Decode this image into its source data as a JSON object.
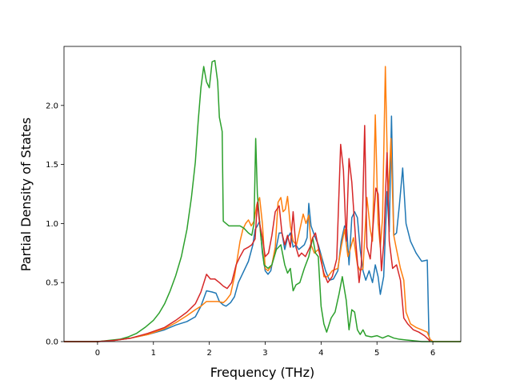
{
  "chart_data": {
    "type": "line",
    "title": "",
    "xlabel": "Frequency (THz)",
    "ylabel": "Partial Density of States",
    "xlim": [
      -0.6,
      6.5
    ],
    "ylim": [
      0.0,
      2.5
    ],
    "xticks": [
      0,
      1,
      2,
      3,
      4,
      5,
      6
    ],
    "yticks": [
      0.0,
      0.5,
      1.0,
      1.5,
      2.0
    ],
    "xtick_labels": [
      "0",
      "1",
      "2",
      "3",
      "4",
      "5",
      "6"
    ],
    "ytick_labels": [
      "0.0",
      "0.5",
      "1.0",
      "1.5",
      "2.0"
    ],
    "grid": false,
    "legend": "none",
    "series": [
      {
        "color": "#1f77b4",
        "points": [
          [
            -0.6,
            0
          ],
          [
            0,
            0
          ],
          [
            0.3,
            0.01
          ],
          [
            0.6,
            0.03
          ],
          [
            0.9,
            0.06
          ],
          [
            1.2,
            0.1
          ],
          [
            1.4,
            0.14
          ],
          [
            1.6,
            0.17
          ],
          [
            1.75,
            0.21
          ],
          [
            1.85,
            0.3
          ],
          [
            1.95,
            0.43
          ],
          [
            2.05,
            0.42
          ],
          [
            2.12,
            0.41
          ],
          [
            2.18,
            0.34
          ],
          [
            2.25,
            0.31
          ],
          [
            2.3,
            0.3
          ],
          [
            2.38,
            0.33
          ],
          [
            2.45,
            0.38
          ],
          [
            2.52,
            0.5
          ],
          [
            2.6,
            0.58
          ],
          [
            2.7,
            0.68
          ],
          [
            2.78,
            0.82
          ],
          [
            2.82,
            0.95
          ],
          [
            2.86,
            0.98
          ],
          [
            2.9,
            1.02
          ],
          [
            2.95,
            0.75
          ],
          [
            3.0,
            0.6
          ],
          [
            3.05,
            0.57
          ],
          [
            3.1,
            0.6
          ],
          [
            3.15,
            0.72
          ],
          [
            3.2,
            0.8
          ],
          [
            3.25,
            0.92
          ],
          [
            3.3,
            0.92
          ],
          [
            3.35,
            0.78
          ],
          [
            3.4,
            0.88
          ],
          [
            3.45,
            0.92
          ],
          [
            3.5,
            0.8
          ],
          [
            3.55,
            0.82
          ],
          [
            3.6,
            0.78
          ],
          [
            3.65,
            0.8
          ],
          [
            3.7,
            0.82
          ],
          [
            3.75,
            0.88
          ],
          [
            3.78,
            1.17
          ],
          [
            3.82,
            0.98
          ],
          [
            3.88,
            0.9
          ],
          [
            3.95,
            0.82
          ],
          [
            4.02,
            0.7
          ],
          [
            4.08,
            0.6
          ],
          [
            4.15,
            0.52
          ],
          [
            4.22,
            0.53
          ],
          [
            4.3,
            0.6
          ],
          [
            4.36,
            0.85
          ],
          [
            4.42,
            0.98
          ],
          [
            4.46,
            0.95
          ],
          [
            4.5,
            0.65
          ],
          [
            4.55,
            1.05
          ],
          [
            4.6,
            1.1
          ],
          [
            4.65,
            1.05
          ],
          [
            4.7,
            0.78
          ],
          [
            4.75,
            0.6
          ],
          [
            4.8,
            0.52
          ],
          [
            4.86,
            0.6
          ],
          [
            4.92,
            0.5
          ],
          [
            4.97,
            0.65
          ],
          [
            5.02,
            0.55
          ],
          [
            5.06,
            0.4
          ],
          [
            5.12,
            0.55
          ],
          [
            5.18,
            1.27
          ],
          [
            5.22,
            0.93
          ],
          [
            5.26,
            1.91
          ],
          [
            5.3,
            0.9
          ],
          [
            5.35,
            0.92
          ],
          [
            5.4,
            1.15
          ],
          [
            5.46,
            1.47
          ],
          [
            5.52,
            1.0
          ],
          [
            5.6,
            0.85
          ],
          [
            5.7,
            0.75
          ],
          [
            5.8,
            0.68
          ],
          [
            5.9,
            0.69
          ],
          [
            5.93,
            0.05
          ],
          [
            5.95,
            0
          ]
        ]
      },
      {
        "color": "#ff7f0e",
        "points": [
          [
            -0.6,
            0
          ],
          [
            0,
            0
          ],
          [
            0.3,
            0.01
          ],
          [
            0.6,
            0.03
          ],
          [
            0.9,
            0.06
          ],
          [
            1.2,
            0.11
          ],
          [
            1.4,
            0.16
          ],
          [
            1.6,
            0.22
          ],
          [
            1.75,
            0.27
          ],
          [
            1.85,
            0.3
          ],
          [
            1.95,
            0.34
          ],
          [
            2.05,
            0.34
          ],
          [
            2.15,
            0.34
          ],
          [
            2.25,
            0.33
          ],
          [
            2.3,
            0.35
          ],
          [
            2.38,
            0.4
          ],
          [
            2.45,
            0.55
          ],
          [
            2.5,
            0.7
          ],
          [
            2.55,
            0.85
          ],
          [
            2.6,
            0.95
          ],
          [
            2.65,
            1.0
          ],
          [
            2.7,
            1.03
          ],
          [
            2.75,
            0.98
          ],
          [
            2.8,
            1.02
          ],
          [
            2.85,
            1.16
          ],
          [
            2.9,
            1.22
          ],
          [
            2.95,
            1.0
          ],
          [
            3.0,
            0.62
          ],
          [
            3.05,
            0.6
          ],
          [
            3.12,
            0.65
          ],
          [
            3.18,
            0.8
          ],
          [
            3.23,
            1.18
          ],
          [
            3.28,
            1.22
          ],
          [
            3.32,
            1.1
          ],
          [
            3.36,
            1.12
          ],
          [
            3.4,
            1.23
          ],
          [
            3.45,
            0.98
          ],
          [
            3.5,
            0.85
          ],
          [
            3.56,
            0.82
          ],
          [
            3.62,
            0.95
          ],
          [
            3.68,
            1.08
          ],
          [
            3.73,
            1.0
          ],
          [
            3.78,
            1.07
          ],
          [
            3.82,
            0.82
          ],
          [
            3.88,
            0.75
          ],
          [
            3.95,
            0.78
          ],
          [
            4.0,
            0.72
          ],
          [
            4.05,
            0.55
          ],
          [
            4.12,
            0.55
          ],
          [
            4.2,
            0.6
          ],
          [
            4.3,
            0.62
          ],
          [
            4.36,
            0.8
          ],
          [
            4.42,
            0.95
          ],
          [
            4.48,
            0.72
          ],
          [
            4.52,
            0.78
          ],
          [
            4.58,
            0.88
          ],
          [
            4.65,
            0.65
          ],
          [
            4.7,
            0.6
          ],
          [
            4.75,
            0.62
          ],
          [
            4.82,
            1.22
          ],
          [
            4.88,
            0.95
          ],
          [
            4.92,
            0.85
          ],
          [
            4.97,
            1.92
          ],
          [
            5.02,
            1.0
          ],
          [
            5.06,
            0.8
          ],
          [
            5.1,
            1.05
          ],
          [
            5.15,
            2.33
          ],
          [
            5.2,
            1.2
          ],
          [
            5.25,
            1.72
          ],
          [
            5.3,
            0.9
          ],
          [
            5.35,
            0.78
          ],
          [
            5.42,
            0.62
          ],
          [
            5.48,
            0.52
          ],
          [
            5.52,
            0.25
          ],
          [
            5.6,
            0.15
          ],
          [
            5.7,
            0.12
          ],
          [
            5.8,
            0.1
          ],
          [
            5.9,
            0.08
          ],
          [
            5.95,
            0.02
          ],
          [
            6.0,
            0
          ],
          [
            6.5,
            0
          ]
        ]
      },
      {
        "color": "#2ca02c",
        "points": [
          [
            -0.6,
            0
          ],
          [
            0,
            0
          ],
          [
            0.2,
            0.01
          ],
          [
            0.4,
            0.02
          ],
          [
            0.55,
            0.04
          ],
          [
            0.7,
            0.07
          ],
          [
            0.85,
            0.12
          ],
          [
            1.0,
            0.18
          ],
          [
            1.1,
            0.24
          ],
          [
            1.2,
            0.32
          ],
          [
            1.3,
            0.43
          ],
          [
            1.4,
            0.56
          ],
          [
            1.5,
            0.72
          ],
          [
            1.6,
            0.95
          ],
          [
            1.68,
            1.22
          ],
          [
            1.75,
            1.52
          ],
          [
            1.8,
            1.86
          ],
          [
            1.85,
            2.15
          ],
          [
            1.9,
            2.33
          ],
          [
            1.95,
            2.2
          ],
          [
            2.0,
            2.15
          ],
          [
            2.05,
            2.37
          ],
          [
            2.1,
            2.38
          ],
          [
            2.15,
            2.2
          ],
          [
            2.18,
            1.9
          ],
          [
            2.23,
            1.78
          ],
          [
            2.25,
            1.02
          ],
          [
            2.35,
            0.98
          ],
          [
            2.45,
            0.98
          ],
          [
            2.55,
            0.98
          ],
          [
            2.62,
            0.96
          ],
          [
            2.7,
            0.92
          ],
          [
            2.76,
            0.9
          ],
          [
            2.8,
            1.0
          ],
          [
            2.83,
            1.72
          ],
          [
            2.86,
            1.25
          ],
          [
            2.92,
            0.9
          ],
          [
            2.98,
            0.65
          ],
          [
            3.05,
            0.62
          ],
          [
            3.12,
            0.65
          ],
          [
            3.2,
            0.78
          ],
          [
            3.28,
            0.82
          ],
          [
            3.35,
            0.65
          ],
          [
            3.4,
            0.58
          ],
          [
            3.45,
            0.62
          ],
          [
            3.5,
            0.43
          ],
          [
            3.55,
            0.48
          ],
          [
            3.62,
            0.5
          ],
          [
            3.7,
            0.62
          ],
          [
            3.78,
            0.72
          ],
          [
            3.85,
            0.88
          ],
          [
            3.9,
            0.75
          ],
          [
            3.95,
            0.72
          ],
          [
            4.0,
            0.3
          ],
          [
            4.05,
            0.15
          ],
          [
            4.1,
            0.08
          ],
          [
            4.18,
            0.2
          ],
          [
            4.25,
            0.25
          ],
          [
            4.32,
            0.4
          ],
          [
            4.38,
            0.55
          ],
          [
            4.45,
            0.35
          ],
          [
            4.5,
            0.1
          ],
          [
            4.55,
            0.27
          ],
          [
            4.6,
            0.25
          ],
          [
            4.65,
            0.1
          ],
          [
            4.7,
            0.06
          ],
          [
            4.75,
            0.1
          ],
          [
            4.8,
            0.05
          ],
          [
            4.9,
            0.04
          ],
          [
            5.0,
            0.05
          ],
          [
            5.1,
            0.03
          ],
          [
            5.2,
            0.05
          ],
          [
            5.3,
            0.03
          ],
          [
            5.4,
            0.02
          ],
          [
            5.6,
            0.01
          ],
          [
            5.8,
            0.0
          ],
          [
            6.0,
            0
          ],
          [
            6.5,
            0
          ]
        ]
      },
      {
        "color": "#d62728",
        "points": [
          [
            -0.6,
            0
          ],
          [
            0,
            0
          ],
          [
            0.3,
            0.01
          ],
          [
            0.6,
            0.03
          ],
          [
            0.9,
            0.07
          ],
          [
            1.2,
            0.12
          ],
          [
            1.4,
            0.18
          ],
          [
            1.6,
            0.25
          ],
          [
            1.75,
            0.32
          ],
          [
            1.85,
            0.42
          ],
          [
            1.95,
            0.57
          ],
          [
            2.02,
            0.53
          ],
          [
            2.1,
            0.53
          ],
          [
            2.18,
            0.5
          ],
          [
            2.25,
            0.47
          ],
          [
            2.32,
            0.45
          ],
          [
            2.4,
            0.5
          ],
          [
            2.48,
            0.65
          ],
          [
            2.55,
            0.72
          ],
          [
            2.62,
            0.78
          ],
          [
            2.7,
            0.8
          ],
          [
            2.76,
            0.82
          ],
          [
            2.82,
            0.87
          ],
          [
            2.86,
            1.18
          ],
          [
            2.9,
            1.0
          ],
          [
            2.95,
            0.88
          ],
          [
            3.0,
            0.72
          ],
          [
            3.06,
            0.75
          ],
          [
            3.12,
            0.9
          ],
          [
            3.18,
            1.1
          ],
          [
            3.25,
            1.15
          ],
          [
            3.3,
            0.92
          ],
          [
            3.35,
            0.82
          ],
          [
            3.4,
            0.9
          ],
          [
            3.45,
            0.8
          ],
          [
            3.5,
            1.1
          ],
          [
            3.55,
            0.8
          ],
          [
            3.6,
            0.72
          ],
          [
            3.65,
            0.75
          ],
          [
            3.72,
            0.72
          ],
          [
            3.8,
            0.8
          ],
          [
            3.85,
            0.88
          ],
          [
            3.9,
            0.92
          ],
          [
            3.95,
            0.8
          ],
          [
            4.0,
            0.68
          ],
          [
            4.05,
            0.58
          ],
          [
            4.12,
            0.5
          ],
          [
            4.2,
            0.55
          ],
          [
            4.28,
            0.7
          ],
          [
            4.35,
            1.67
          ],
          [
            4.4,
            1.45
          ],
          [
            4.45,
            0.85
          ],
          [
            4.5,
            1.55
          ],
          [
            4.55,
            1.35
          ],
          [
            4.62,
            0.85
          ],
          [
            4.68,
            0.5
          ],
          [
            4.72,
            0.65
          ],
          [
            4.78,
            1.83
          ],
          [
            4.82,
            0.8
          ],
          [
            4.88,
            0.7
          ],
          [
            4.93,
            0.98
          ],
          [
            4.98,
            1.3
          ],
          [
            5.02,
            1.25
          ],
          [
            5.08,
            0.6
          ],
          [
            5.12,
            0.82
          ],
          [
            5.18,
            1.6
          ],
          [
            5.22,
            0.85
          ],
          [
            5.28,
            0.62
          ],
          [
            5.35,
            0.65
          ],
          [
            5.42,
            0.52
          ],
          [
            5.48,
            0.2
          ],
          [
            5.55,
            0.15
          ],
          [
            5.65,
            0.1
          ],
          [
            5.75,
            0.08
          ],
          [
            5.85,
            0.05
          ],
          [
            5.92,
            0.02
          ],
          [
            5.95,
            0
          ]
        ]
      }
    ]
  }
}
